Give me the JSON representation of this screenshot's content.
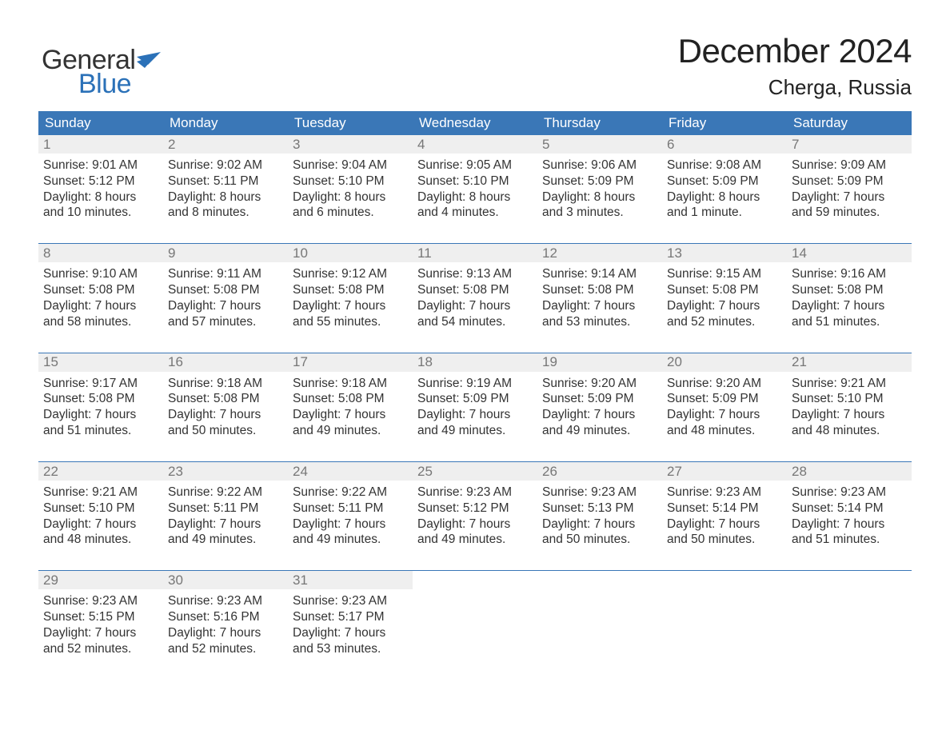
{
  "brand": {
    "general": "General",
    "blue": "Blue"
  },
  "title": "December 2024",
  "location": "Cherga, Russia",
  "colors": {
    "header_bg": "#3a77b7",
    "header_text": "#ffffff",
    "daynum_bg": "#efefef",
    "daynum_text": "#777777",
    "border": "#3a77b7",
    "logo_blue": "#2b71b8",
    "logo_dark": "#333333",
    "body_text": "#333333",
    "background": "#ffffff"
  },
  "weekdays": [
    "Sunday",
    "Monday",
    "Tuesday",
    "Wednesday",
    "Thursday",
    "Friday",
    "Saturday"
  ],
  "weeks": [
    [
      {
        "n": "1",
        "sr": "Sunrise: 9:01 AM",
        "ss": "Sunset: 5:12 PM",
        "d1": "Daylight: 8 hours",
        "d2": "and 10 minutes."
      },
      {
        "n": "2",
        "sr": "Sunrise: 9:02 AM",
        "ss": "Sunset: 5:11 PM",
        "d1": "Daylight: 8 hours",
        "d2": "and 8 minutes."
      },
      {
        "n": "3",
        "sr": "Sunrise: 9:04 AM",
        "ss": "Sunset: 5:10 PM",
        "d1": "Daylight: 8 hours",
        "d2": "and 6 minutes."
      },
      {
        "n": "4",
        "sr": "Sunrise: 9:05 AM",
        "ss": "Sunset: 5:10 PM",
        "d1": "Daylight: 8 hours",
        "d2": "and 4 minutes."
      },
      {
        "n": "5",
        "sr": "Sunrise: 9:06 AM",
        "ss": "Sunset: 5:09 PM",
        "d1": "Daylight: 8 hours",
        "d2": "and 3 minutes."
      },
      {
        "n": "6",
        "sr": "Sunrise: 9:08 AM",
        "ss": "Sunset: 5:09 PM",
        "d1": "Daylight: 8 hours",
        "d2": "and 1 minute."
      },
      {
        "n": "7",
        "sr": "Sunrise: 9:09 AM",
        "ss": "Sunset: 5:09 PM",
        "d1": "Daylight: 7 hours",
        "d2": "and 59 minutes."
      }
    ],
    [
      {
        "n": "8",
        "sr": "Sunrise: 9:10 AM",
        "ss": "Sunset: 5:08 PM",
        "d1": "Daylight: 7 hours",
        "d2": "and 58 minutes."
      },
      {
        "n": "9",
        "sr": "Sunrise: 9:11 AM",
        "ss": "Sunset: 5:08 PM",
        "d1": "Daylight: 7 hours",
        "d2": "and 57 minutes."
      },
      {
        "n": "10",
        "sr": "Sunrise: 9:12 AM",
        "ss": "Sunset: 5:08 PM",
        "d1": "Daylight: 7 hours",
        "d2": "and 55 minutes."
      },
      {
        "n": "11",
        "sr": "Sunrise: 9:13 AM",
        "ss": "Sunset: 5:08 PM",
        "d1": "Daylight: 7 hours",
        "d2": "and 54 minutes."
      },
      {
        "n": "12",
        "sr": "Sunrise: 9:14 AM",
        "ss": "Sunset: 5:08 PM",
        "d1": "Daylight: 7 hours",
        "d2": "and 53 minutes."
      },
      {
        "n": "13",
        "sr": "Sunrise: 9:15 AM",
        "ss": "Sunset: 5:08 PM",
        "d1": "Daylight: 7 hours",
        "d2": "and 52 minutes."
      },
      {
        "n": "14",
        "sr": "Sunrise: 9:16 AM",
        "ss": "Sunset: 5:08 PM",
        "d1": "Daylight: 7 hours",
        "d2": "and 51 minutes."
      }
    ],
    [
      {
        "n": "15",
        "sr": "Sunrise: 9:17 AM",
        "ss": "Sunset: 5:08 PM",
        "d1": "Daylight: 7 hours",
        "d2": "and 51 minutes."
      },
      {
        "n": "16",
        "sr": "Sunrise: 9:18 AM",
        "ss": "Sunset: 5:08 PM",
        "d1": "Daylight: 7 hours",
        "d2": "and 50 minutes."
      },
      {
        "n": "17",
        "sr": "Sunrise: 9:18 AM",
        "ss": "Sunset: 5:08 PM",
        "d1": "Daylight: 7 hours",
        "d2": "and 49 minutes."
      },
      {
        "n": "18",
        "sr": "Sunrise: 9:19 AM",
        "ss": "Sunset: 5:09 PM",
        "d1": "Daylight: 7 hours",
        "d2": "and 49 minutes."
      },
      {
        "n": "19",
        "sr": "Sunrise: 9:20 AM",
        "ss": "Sunset: 5:09 PM",
        "d1": "Daylight: 7 hours",
        "d2": "and 49 minutes."
      },
      {
        "n": "20",
        "sr": "Sunrise: 9:20 AM",
        "ss": "Sunset: 5:09 PM",
        "d1": "Daylight: 7 hours",
        "d2": "and 48 minutes."
      },
      {
        "n": "21",
        "sr": "Sunrise: 9:21 AM",
        "ss": "Sunset: 5:10 PM",
        "d1": "Daylight: 7 hours",
        "d2": "and 48 minutes."
      }
    ],
    [
      {
        "n": "22",
        "sr": "Sunrise: 9:21 AM",
        "ss": "Sunset: 5:10 PM",
        "d1": "Daylight: 7 hours",
        "d2": "and 48 minutes."
      },
      {
        "n": "23",
        "sr": "Sunrise: 9:22 AM",
        "ss": "Sunset: 5:11 PM",
        "d1": "Daylight: 7 hours",
        "d2": "and 49 minutes."
      },
      {
        "n": "24",
        "sr": "Sunrise: 9:22 AM",
        "ss": "Sunset: 5:11 PM",
        "d1": "Daylight: 7 hours",
        "d2": "and 49 minutes."
      },
      {
        "n": "25",
        "sr": "Sunrise: 9:23 AM",
        "ss": "Sunset: 5:12 PM",
        "d1": "Daylight: 7 hours",
        "d2": "and 49 minutes."
      },
      {
        "n": "26",
        "sr": "Sunrise: 9:23 AM",
        "ss": "Sunset: 5:13 PM",
        "d1": "Daylight: 7 hours",
        "d2": "and 50 minutes."
      },
      {
        "n": "27",
        "sr": "Sunrise: 9:23 AM",
        "ss": "Sunset: 5:14 PM",
        "d1": "Daylight: 7 hours",
        "d2": "and 50 minutes."
      },
      {
        "n": "28",
        "sr": "Sunrise: 9:23 AM",
        "ss": "Sunset: 5:14 PM",
        "d1": "Daylight: 7 hours",
        "d2": "and 51 minutes."
      }
    ],
    [
      {
        "n": "29",
        "sr": "Sunrise: 9:23 AM",
        "ss": "Sunset: 5:15 PM",
        "d1": "Daylight: 7 hours",
        "d2": "and 52 minutes."
      },
      {
        "n": "30",
        "sr": "Sunrise: 9:23 AM",
        "ss": "Sunset: 5:16 PM",
        "d1": "Daylight: 7 hours",
        "d2": "and 52 minutes."
      },
      {
        "n": "31",
        "sr": "Sunrise: 9:23 AM",
        "ss": "Sunset: 5:17 PM",
        "d1": "Daylight: 7 hours",
        "d2": "and 53 minutes."
      },
      {
        "empty": true
      },
      {
        "empty": true
      },
      {
        "empty": true
      },
      {
        "empty": true
      }
    ]
  ]
}
